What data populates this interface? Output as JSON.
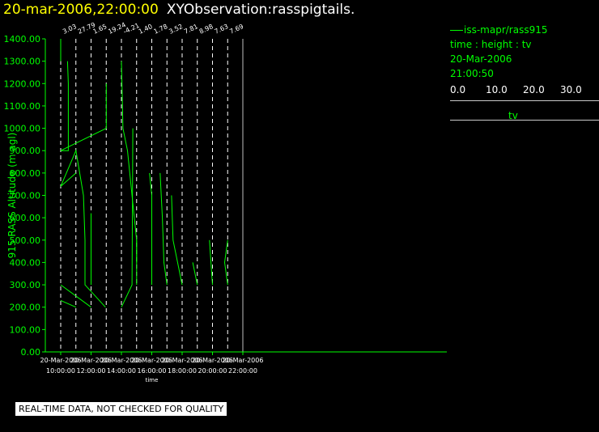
{
  "header": {
    "date": "20-mar-2006,22:00:00",
    "title": "XYObservation:rasspigtails."
  },
  "legend": {
    "series": "iss-mapr/rass915",
    "desc": "time : height : tv",
    "date": "20-Mar-2006",
    "time": "21:00:50",
    "scale_ticks": [
      "0.0",
      "10.0",
      "20.0",
      "30.0"
    ],
    "scale_label": "tv"
  },
  "note": "REAL-TIME DATA, NOT CHECKED FOR QUALITY",
  "colors": {
    "data": "#00ff00",
    "axis": "#00ff00",
    "title": "#ffff00",
    "grid": "#ffffff"
  },
  "chart_data": {
    "type": "line",
    "ylabel": "915 RASS Altitude (m agl)",
    "xlabel": "time",
    "ylim": [
      0,
      1400
    ],
    "yticks": [
      "0.00",
      "100.00",
      "200.00",
      "300.00",
      "400.00",
      "500.00",
      "600.00",
      "700.00",
      "800.00",
      "900.00",
      "1000.00",
      "1100.00",
      "1200.00",
      "1300.00",
      "1400.00"
    ],
    "xlim_hours": [
      9.5,
      23.0
    ],
    "xticks": [
      {
        "hour": 10,
        "date": "20-Mar-2006",
        "time": "10:00:00"
      },
      {
        "hour": 12,
        "date": "20-Mar-2006",
        "time": "12:00:00"
      },
      {
        "hour": 14,
        "date": "20-Mar-2006",
        "time": "14:00:00"
      },
      {
        "hour": 16,
        "date": "20-Mar-2006",
        "time": "16:00:00"
      },
      {
        "hour": 18,
        "date": "20-Mar-2006",
        "time": "18:00:00"
      },
      {
        "hour": 20,
        "date": "20-Mar-2006",
        "time": "20:00:00"
      },
      {
        "hour": 22,
        "date": "20-Mar-2006",
        "time": "22:00:00"
      }
    ],
    "tv_per_hour": 10.0,
    "profiles": [
      {
        "hour": 10,
        "label": "3.03",
        "points": [
          [
            0,
            1400
          ],
          [
            0,
            1300
          ]
        ]
      },
      {
        "hour": 10,
        "label": "",
        "points": [
          [
            0,
            740
          ],
          [
            10,
            900
          ],
          [
            15,
            700
          ],
          [
            16,
            500
          ],
          [
            16,
            300
          ],
          [
            29.5,
            200
          ]
        ]
      },
      {
        "hour": 10,
        "label": "",
        "points": [
          [
            0,
            230
          ],
          [
            10,
            200
          ]
        ]
      },
      {
        "hour": 11,
        "label": "27.79",
        "points": [
          [
            0,
            800
          ],
          [
            -10,
            740
          ]
        ]
      },
      {
        "hour": 11,
        "label": "",
        "points": [
          [
            -5.5,
            1300
          ],
          [
            -5,
            1200
          ],
          [
            -5,
            900
          ],
          [
            -10,
            900
          ],
          [
            20,
            1000
          ]
        ]
      },
      {
        "hour": 11,
        "label": "",
        "points": [
          [
            -10,
            300
          ],
          [
            10,
            200
          ]
        ]
      },
      {
        "hour": 12,
        "label": "1.65",
        "points": [
          [
            0,
            620
          ],
          [
            0,
            300
          ]
        ]
      },
      {
        "hour": 13,
        "label": "19.24",
        "points": [
          [
            0,
            1200
          ],
          [
            0,
            1000
          ]
        ]
      },
      {
        "hour": 14,
        "label": "-4.21",
        "points": [
          [
            0,
            1300
          ],
          [
            1,
            1000
          ],
          [
            4,
            900
          ],
          [
            7,
            700
          ],
          [
            10,
            500
          ],
          [
            10,
            300
          ]
        ]
      },
      {
        "hour": 14,
        "label": "",
        "points": [
          [
            0,
            200
          ],
          [
            7,
            300
          ],
          [
            7.5,
            1000
          ]
        ]
      },
      {
        "hour": 15,
        "label": "1.40",
        "points": [
          [
            0,
            500
          ],
          [
            0,
            400
          ]
        ]
      },
      {
        "hour": 16,
        "label": "1.78",
        "points": [
          [
            -1.5,
            800
          ],
          [
            0,
            700
          ],
          [
            0,
            500
          ],
          [
            0,
            300
          ]
        ]
      },
      {
        "hour": 17,
        "label": "3.52",
        "points": [
          [
            -4.5,
            800
          ],
          [
            -3,
            600
          ],
          [
            -2,
            400
          ],
          [
            0,
            300
          ]
        ]
      },
      {
        "hour": 18,
        "label": "7.81",
        "points": [
          [
            -7,
            700
          ],
          [
            -6,
            500
          ],
          [
            -3,
            400
          ],
          [
            0,
            300
          ]
        ]
      },
      {
        "hour": 19,
        "label": "8.98",
        "points": [
          [
            -3,
            400
          ],
          [
            0,
            300
          ]
        ]
      },
      {
        "hour": 20,
        "label": "7.63",
        "points": [
          [
            -2,
            500
          ],
          [
            -1,
            400
          ],
          [
            0,
            300
          ]
        ]
      },
      {
        "hour": 21,
        "label": "7.69",
        "points": [
          [
            0,
            500
          ],
          [
            -2,
            400
          ],
          [
            0,
            300
          ]
        ]
      }
    ]
  }
}
